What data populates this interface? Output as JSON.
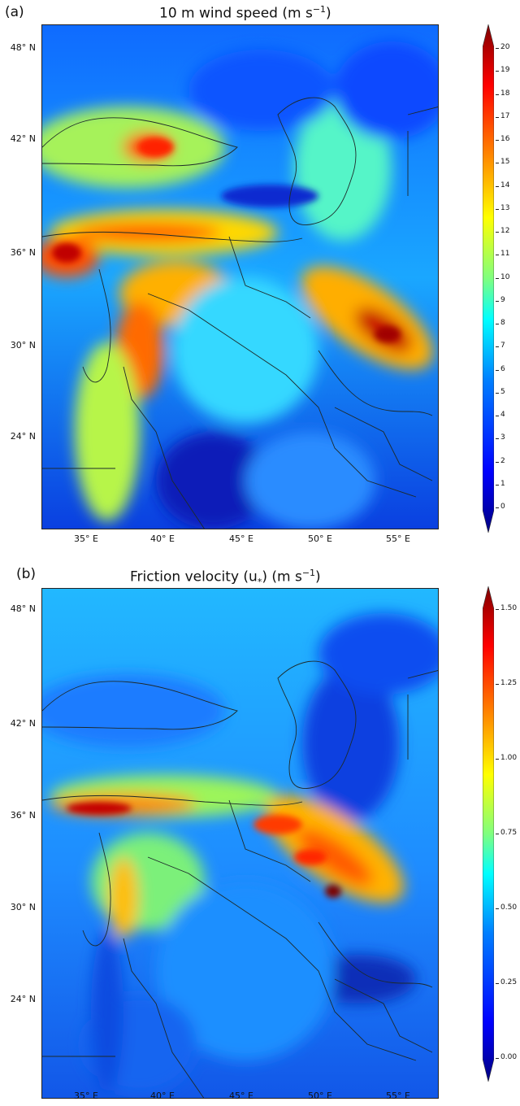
{
  "panels": [
    {
      "letter": "(a)",
      "title_main": "10 m wind speed (m s",
      "title_sup": "−1",
      "title_end": ")",
      "colorbar_ticks": [
        "20",
        "19",
        "18",
        "17",
        "16",
        "15",
        "14",
        "13",
        "12",
        "11",
        "10",
        "9",
        "8",
        "7",
        "6",
        "5",
        "4",
        "3",
        "2",
        "1",
        "0"
      ]
    },
    {
      "letter": "(b)",
      "title_main": "Friction velocity (u",
      "title_sub": "*",
      "title_mid": ") (m s",
      "title_sup": "−1",
      "title_end": ")",
      "colorbar_ticks": [
        "1.50",
        "1.25",
        "1.00",
        "0.75",
        "0.50",
        "0.25",
        "0.00"
      ]
    }
  ],
  "lat_labels": [
    "48° N",
    "42° N",
    "36° N",
    "30° N",
    "24° N"
  ],
  "lon_labels": [
    "35° E",
    "40° E",
    "45° E",
    "50° E",
    "55° E"
  ],
  "colormap": [
    "#00007f",
    "#0000ff",
    "#007fff",
    "#00ffff",
    "#7fff7f",
    "#ffff00",
    "#ff7f00",
    "#ff0000",
    "#7f0000"
  ]
}
